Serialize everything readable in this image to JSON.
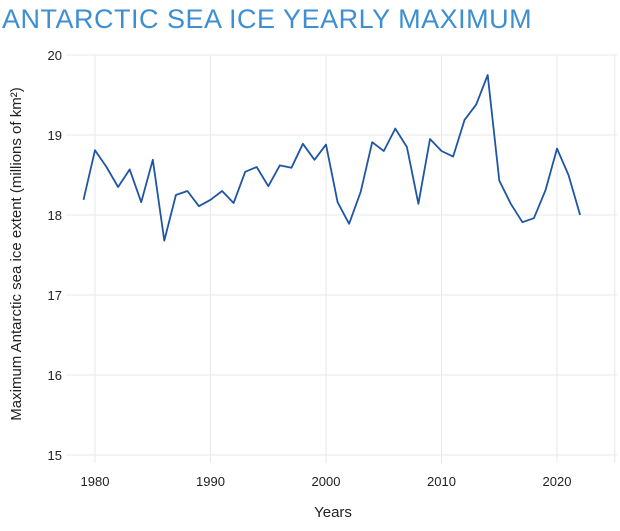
{
  "chart_data": {
    "type": "line",
    "title": "ANTARCTIC SEA ICE YEARLY MAXIMUM",
    "xlabel": "Years",
    "ylabel": "Maximum Antarctic sea ice extent (millions of km²)",
    "xlim": [
      1977.5,
      2025.2
    ],
    "ylim": [
      15,
      20
    ],
    "xticks": [
      1980,
      1990,
      2000,
      2010,
      2020
    ],
    "yticks": [
      15,
      16,
      17,
      18,
      19,
      20
    ],
    "grid": true,
    "line_color": "#1f56a3",
    "title_color": "#3d8fd1",
    "x": [
      1979,
      1980,
      1981,
      1982,
      1983,
      1984,
      1985,
      1986,
      1987,
      1988,
      1989,
      1990,
      1991,
      1992,
      1993,
      1994,
      1995,
      1996,
      1997,
      1998,
      1999,
      2000,
      2001,
      2002,
      2003,
      2004,
      2005,
      2006,
      2007,
      2008,
      2009,
      2010,
      2011,
      2012,
      2013,
      2014,
      2015,
      2016,
      2017,
      2018,
      2019,
      2020,
      2021,
      2022
    ],
    "values": [
      18.19,
      18.81,
      18.6,
      18.35,
      18.57,
      18.16,
      18.69,
      17.68,
      18.25,
      18.3,
      18.11,
      18.19,
      18.3,
      18.15,
      18.54,
      18.6,
      18.36,
      18.62,
      18.59,
      18.89,
      18.69,
      18.88,
      18.16,
      17.89,
      18.29,
      18.91,
      18.8,
      19.08,
      18.85,
      18.14,
      18.95,
      18.8,
      18.73,
      19.19,
      19.38,
      19.75,
      18.43,
      18.14,
      17.91,
      17.96,
      18.31,
      18.83,
      18.5,
      18.0
    ]
  }
}
